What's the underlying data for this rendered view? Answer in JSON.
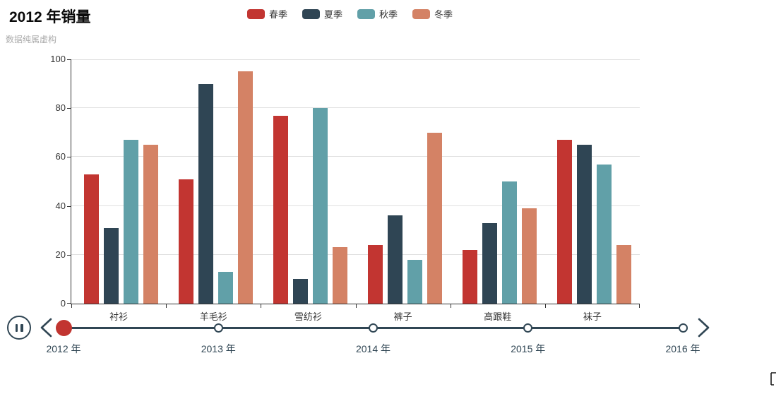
{
  "header": {
    "title": "2012 年销量",
    "subtitle": "数据纯属虚构"
  },
  "chart_data": {
    "type": "bar",
    "title": "2012 年销量",
    "subtitle": "数据纯属虚构",
    "categories": [
      "衬衫",
      "羊毛衫",
      "雪纺衫",
      "裤子",
      "高跟鞋",
      "袜子"
    ],
    "series": [
      {
        "name": "春季",
        "color": "#c23531",
        "values": [
          53,
          51,
          77,
          24,
          22,
          67
        ]
      },
      {
        "name": "夏季",
        "color": "#2f4554",
        "values": [
          31,
          90,
          10,
          36,
          33,
          65
        ]
      },
      {
        "name": "秋季",
        "color": "#61a0a8",
        "values": [
          67,
          13,
          80,
          18,
          50,
          57
        ]
      },
      {
        "name": "冬季",
        "color": "#d48265",
        "values": [
          65,
          95,
          23,
          70,
          39,
          24
        ]
      }
    ],
    "xlabel": "",
    "ylabel": "",
    "ylim": [
      0,
      100
    ],
    "y_ticks": [
      0,
      20,
      40,
      60,
      80,
      100
    ],
    "grid": true,
    "legend_position": "top-center"
  },
  "timeline": {
    "years": [
      "2012 年",
      "2013 年",
      "2014 年",
      "2015 年",
      "2016 年"
    ],
    "current_index": 0,
    "play_state": "playing",
    "colors": {
      "line": "#304654",
      "checkpoint": "#c23531",
      "checkpoint_halo": "rgba(194,53,49,0.45)"
    }
  }
}
